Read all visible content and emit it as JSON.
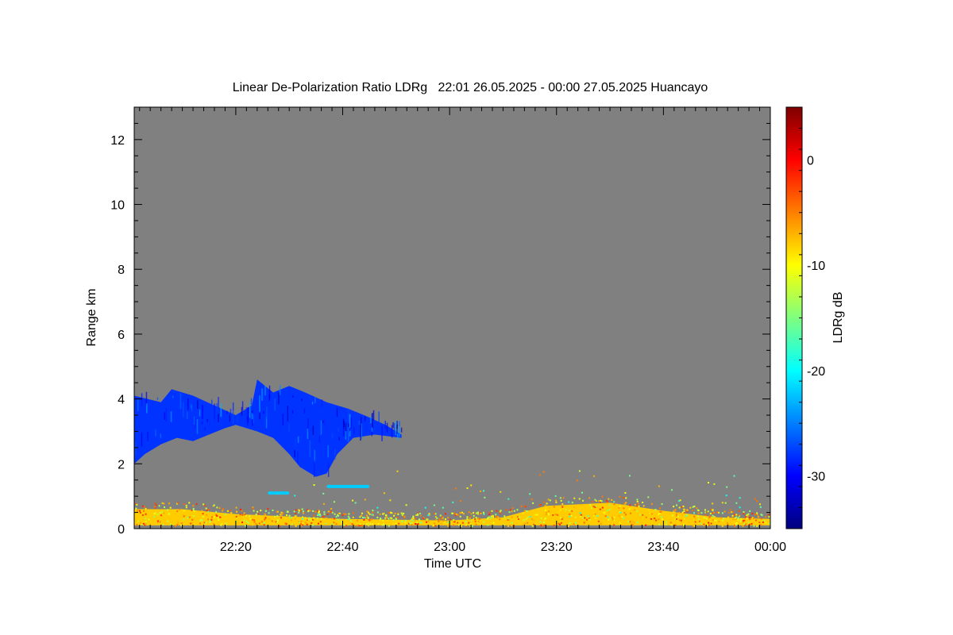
{
  "chart_data": {
    "type": "heatmap",
    "title": "Linear De-Polarization Ratio LDRg   22:01 26.05.2025 - 00:00 27.05.2025 Huancayo",
    "xlabel": "Time UTC",
    "ylabel": "Range km",
    "colorbar_label": "LDRg dB",
    "x_unit": "minutes after 22:00 UTC",
    "xlim": [
      1,
      120
    ],
    "ylim": [
      0,
      13
    ],
    "x_ticks": [
      {
        "value": 20,
        "label": "22:20"
      },
      {
        "value": 40,
        "label": "22:40"
      },
      {
        "value": 60,
        "label": "23:00"
      },
      {
        "value": 80,
        "label": "23:20"
      },
      {
        "value": 100,
        "label": "23:40"
      },
      {
        "value": 120,
        "label": "00:00"
      }
    ],
    "y_ticks": [
      {
        "value": 0,
        "label": "0"
      },
      {
        "value": 2,
        "label": "2"
      },
      {
        "value": 4,
        "label": "4"
      },
      {
        "value": 6,
        "label": "6"
      },
      {
        "value": 8,
        "label": "8"
      },
      {
        "value": 10,
        "label": "10"
      },
      {
        "value": 12,
        "label": "12"
      }
    ],
    "colorbar": {
      "vmin": -35,
      "vmax": 5,
      "ticks": [
        {
          "value": 0,
          "label": "0"
        },
        {
          "value": -10,
          "label": "-10"
        },
        {
          "value": -20,
          "label": "-20"
        },
        {
          "value": -30,
          "label": "-30"
        }
      ],
      "colormap": [
        "#00007f",
        "#0000ff",
        "#007fff",
        "#00ffff",
        "#7fff7f",
        "#ffff00",
        "#ff7f00",
        "#ff0000",
        "#7f0000"
      ]
    },
    "background_color": "#808080",
    "features": [
      {
        "name": "mid-level cloud",
        "ldr_db": -28,
        "top_profile": [
          [
            1,
            4.1
          ],
          [
            6,
            3.9
          ],
          [
            8,
            4.3
          ],
          [
            12,
            4.1
          ],
          [
            16,
            3.8
          ],
          [
            20,
            3.5
          ],
          [
            23,
            3.8
          ],
          [
            24,
            4.6
          ],
          [
            27,
            4.2
          ],
          [
            30,
            4.4
          ],
          [
            33,
            4.2
          ],
          [
            37,
            3.9
          ],
          [
            41,
            3.7
          ],
          [
            44,
            3.5
          ],
          [
            48,
            3.2
          ],
          [
            51,
            2.9
          ]
        ],
        "base_profile": [
          [
            1,
            2.0
          ],
          [
            3,
            2.3
          ],
          [
            6,
            2.6
          ],
          [
            9,
            2.8
          ],
          [
            12,
            2.7
          ],
          [
            15,
            2.9
          ],
          [
            18,
            3.1
          ],
          [
            20,
            3.2
          ],
          [
            24,
            3.0
          ],
          [
            27,
            2.8
          ],
          [
            30,
            2.3
          ],
          [
            32,
            1.9
          ],
          [
            35,
            1.6
          ],
          [
            37,
            1.7
          ],
          [
            39,
            2.3
          ],
          [
            42,
            2.8
          ],
          [
            46,
            2.9
          ],
          [
            51,
            2.8
          ]
        ]
      },
      {
        "name": "thin layer",
        "ldr_db": -22,
        "x_range": [
          26,
          30
        ],
        "height_km": 1.1
      },
      {
        "name": "thin layer",
        "ldr_db": -22,
        "x_range": [
          37,
          45
        ],
        "height_km": 1.3
      },
      {
        "name": "boundary layer",
        "ldr_db": -8,
        "top_profile": [
          [
            1,
            0.6
          ],
          [
            10,
            0.6
          ],
          [
            20,
            0.45
          ],
          [
            40,
            0.3
          ],
          [
            60,
            0.25
          ],
          [
            70,
            0.35
          ],
          [
            78,
            0.7
          ],
          [
            90,
            0.8
          ],
          [
            100,
            0.55
          ],
          [
            110,
            0.35
          ],
          [
            120,
            0.3
          ]
        ]
      }
    ]
  }
}
